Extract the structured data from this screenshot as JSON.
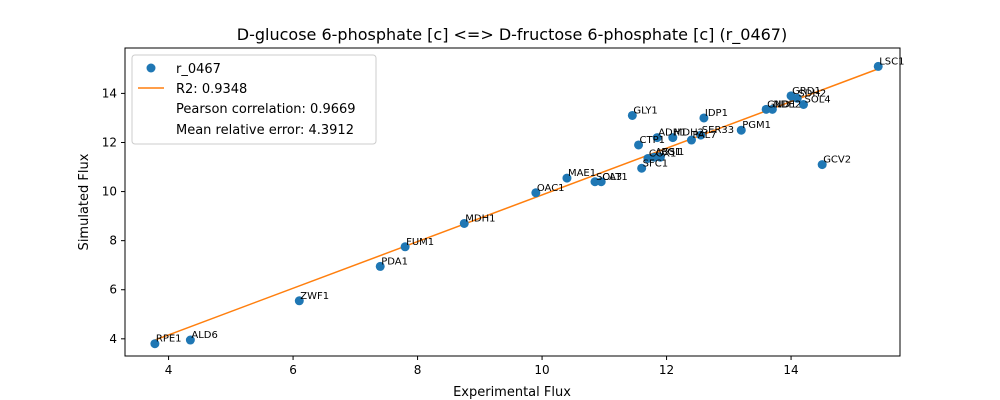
{
  "chart_data": {
    "type": "scatter",
    "title": "D-glucose 6-phosphate [c] <=> D-fructose 6-phosphate [c] (r_0467)",
    "xlabel": "Experimental Flux",
    "ylabel": "Simulated Flux",
    "xlim": [
      3.3,
      15.75
    ],
    "ylim": [
      3.3,
      15.85
    ],
    "xticks": [
      4,
      6,
      8,
      10,
      12,
      14
    ],
    "yticks": [
      4,
      6,
      8,
      10,
      12,
      14
    ],
    "legend_position": "top-left",
    "colors": {
      "points": "#1f77b4",
      "fit": "#ff7f0e"
    },
    "legend": {
      "series": "r_0467",
      "fit": "R2: 0.9348",
      "pearson": "Pearson correlation: 0.9669",
      "mre": "Mean relative error: 4.3912"
    },
    "fit_line": {
      "x": [
        3.78,
        15.4
      ],
      "y": [
        3.95,
        15.0
      ]
    },
    "points": [
      {
        "label": "RPE1",
        "x": 3.78,
        "y": 3.8
      },
      {
        "label": "ALD6",
        "x": 4.35,
        "y": 3.95
      },
      {
        "label": "ZWF1",
        "x": 6.1,
        "y": 5.55
      },
      {
        "label": "PDA1",
        "x": 7.4,
        "y": 6.95
      },
      {
        "label": "FUM1",
        "x": 7.8,
        "y": 7.75
      },
      {
        "label": "MDH1",
        "x": 8.75,
        "y": 8.7
      },
      {
        "label": "OAC1",
        "x": 9.9,
        "y": 9.95
      },
      {
        "label": "MAE1",
        "x": 10.4,
        "y": 10.55
      },
      {
        "label": "SOL3",
        "x": 10.85,
        "y": 10.4
      },
      {
        "label": "CAT1",
        "x": 10.95,
        "y": 10.4
      },
      {
        "label": "GLY1",
        "x": 11.45,
        "y": 13.1
      },
      {
        "label": "CTP1",
        "x": 11.55,
        "y": 11.9
      },
      {
        "label": "SFC1",
        "x": 11.6,
        "y": 10.95
      },
      {
        "label": "COX1",
        "x": 11.7,
        "y": 11.35
      },
      {
        "label": "ACS1",
        "x": 11.8,
        "y": 11.4
      },
      {
        "label": "PGI1",
        "x": 11.9,
        "y": 11.4
      },
      {
        "label": "ADH1",
        "x": 11.85,
        "y": 12.2
      },
      {
        "label": "MDH2",
        "x": 12.1,
        "y": 12.2
      },
      {
        "label": "PAL7",
        "x": 12.4,
        "y": 12.1
      },
      {
        "label": "SER33",
        "x": 12.55,
        "y": 12.3
      },
      {
        "label": "IDP1",
        "x": 12.6,
        "y": 13.0
      },
      {
        "label": "PGM1",
        "x": 13.2,
        "y": 12.5
      },
      {
        "label": "GND1",
        "x": 13.6,
        "y": 13.35
      },
      {
        "label": "NDE2",
        "x": 13.7,
        "y": 13.35
      },
      {
        "label": "GRD1",
        "x": 14.0,
        "y": 13.9
      },
      {
        "label": "SDH2",
        "x": 14.1,
        "y": 13.8
      },
      {
        "label": "SOL4",
        "x": 14.2,
        "y": 13.55
      },
      {
        "label": "GCV2",
        "x": 14.5,
        "y": 11.1
      },
      {
        "label": "LSC1",
        "x": 15.4,
        "y": 15.1
      }
    ]
  }
}
